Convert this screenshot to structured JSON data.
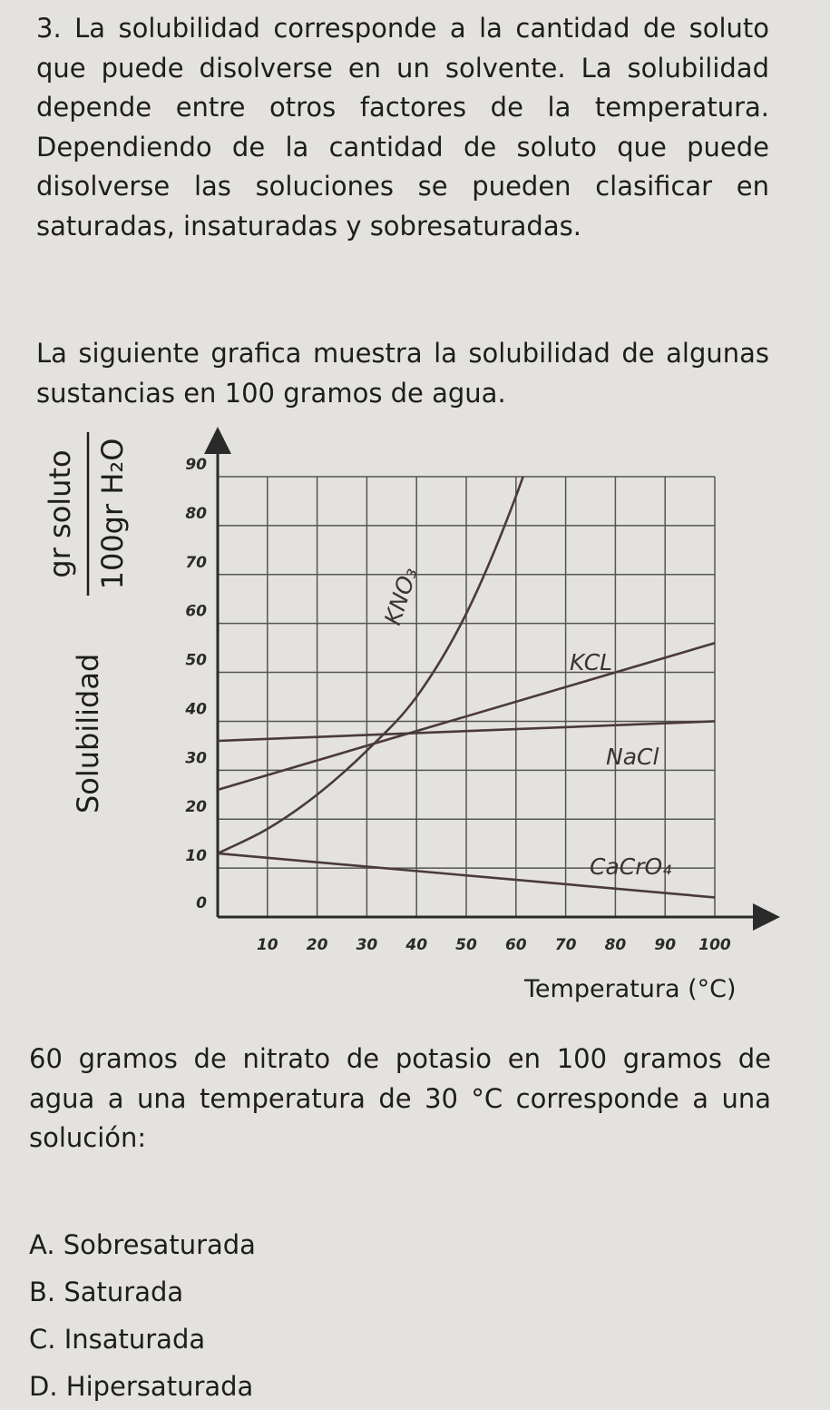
{
  "question": {
    "number": "3.",
    "intro": "La solubilidad corresponde a la cantidad de soluto que puede disolverse en un solvente. La solubilidad depende entre otros factores de la temperatura. Dependiendo de la cantidad de soluto que puede disolverse las soluciones se pueden clasificar en saturadas, insaturadas y sobresaturadas.",
    "graph_intro": "La siguiente grafica muestra la solubilidad de algunas sustancias en 100 gramos de agua.",
    "prompt": "60 gramos de nitrato de potasio en 100 gramos de agua a una temperatura de 30 °C corresponde a una solución:",
    "options": [
      {
        "letter": "A.",
        "text": "Sobresaturada"
      },
      {
        "letter": "B.",
        "text": "Saturada"
      },
      {
        "letter": "C.",
        "text": "Insaturada"
      },
      {
        "letter": "D.",
        "text": "Hipersaturada"
      }
    ]
  },
  "chart_data": {
    "type": "line",
    "ylabel": "Solubilidad",
    "ylabel_numerator": "gr soluto",
    "ylabel_denominator": "100gr H₂O",
    "xlabel": "Temperatura (°C)",
    "x_ticks": [
      "10",
      "20",
      "30",
      "40",
      "50",
      "60",
      "70",
      "80",
      "90",
      "100"
    ],
    "y_ticks": [
      "0",
      "10",
      "20",
      "30",
      "40",
      "50",
      "60",
      "70",
      "80",
      "90"
    ],
    "xlim": [
      0,
      100
    ],
    "ylim": [
      0,
      90
    ],
    "grid": true,
    "series": [
      {
        "name": "KNO₃",
        "x": [
          0,
          10,
          20,
          30,
          40,
          50,
          60,
          70
        ],
        "y": [
          13,
          18,
          25,
          34,
          45,
          62,
          86,
          116
        ]
      },
      {
        "name": "KCL",
        "x": [
          0,
          100
        ],
        "y": [
          26,
          56
        ]
      },
      {
        "name": "NaCl",
        "x": [
          0,
          100
        ],
        "y": [
          36,
          40
        ]
      },
      {
        "name": "CaCrO₄",
        "x": [
          0,
          100
        ],
        "y": [
          13,
          4
        ]
      }
    ],
    "colors": {
      "line": "#4a3a3a",
      "grid": "#555555",
      "background": "#e4e2de"
    }
  }
}
